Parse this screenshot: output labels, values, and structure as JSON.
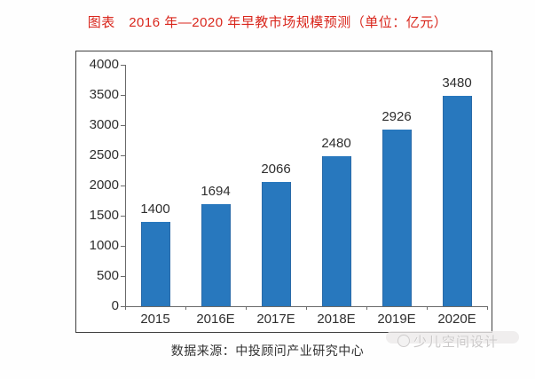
{
  "page": {
    "title": "图表　2016 年—2020 年早教市场规模预测（单位：亿元）",
    "source": "数据来源：中投顾问产业研究中心",
    "watermark": "少儿空间设计"
  },
  "colors": {
    "title_red": "#d9261c",
    "bar_blue": "#2878be",
    "axis_gray": "#6a6a6a",
    "label_text": "#2e2e2e",
    "watermark_gray": "#cbc9c9"
  },
  "chart_data": {
    "type": "bar",
    "title": "图表　2016 年—2020 年早教市场规模预测（单位：亿元）",
    "unit": "亿元",
    "categories": [
      "2015",
      "2016E",
      "2017E",
      "2018E",
      "2019E",
      "2020E"
    ],
    "values": [
      1400,
      1694,
      2066,
      2480,
      2926,
      3480
    ],
    "xlabel": "",
    "ylabel": "",
    "ylim": [
      0,
      4000
    ],
    "yticks": [
      0,
      500,
      1000,
      1500,
      2000,
      2500,
      3000,
      3500,
      4000
    ],
    "grid": false,
    "legend": "none",
    "bar_labels_shown": true,
    "source": "数据来源：中投顾问产业研究中心"
  }
}
